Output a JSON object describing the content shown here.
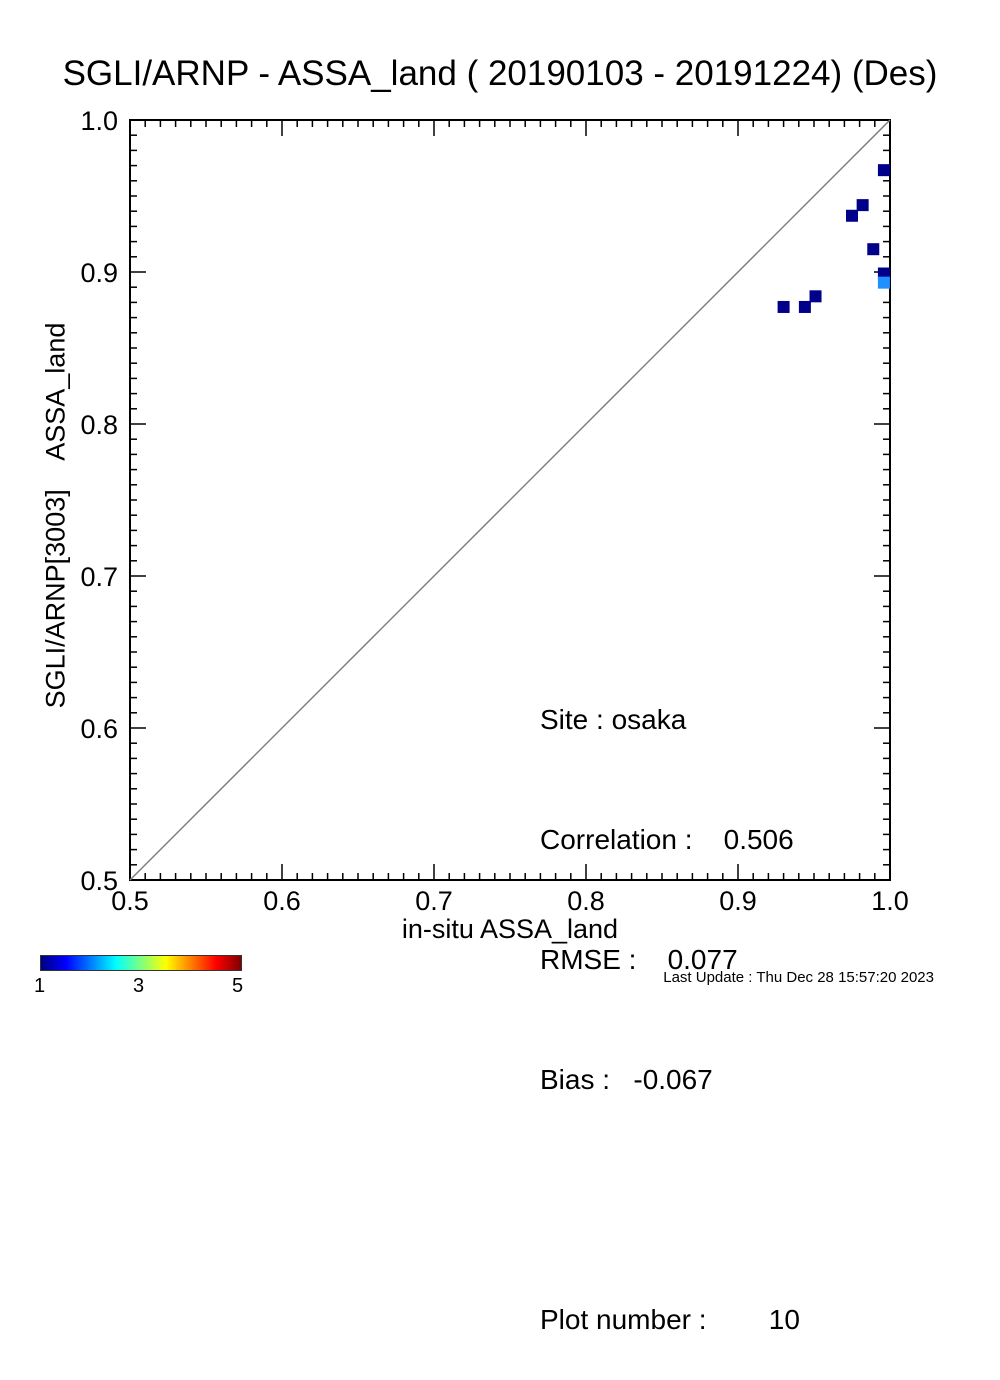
{
  "title": "SGLI/ARNP - ASSA_land ( 20190103 - 20191224) (Des)",
  "chart_data": {
    "type": "scatter",
    "title": "SGLI/ARNP - ASSA_land ( 20190103 - 20191224) (Des)",
    "xlabel": "in-situ ASSA_land",
    "ylabel": "SGLI/ARNP[3003]    ASSA_land",
    "xlim": [
      0.5,
      1.0
    ],
    "ylim": [
      0.5,
      1.0
    ],
    "xticks": [
      "0.5",
      "0.6",
      "0.7",
      "0.8",
      "0.9",
      "1.0"
    ],
    "yticks": [
      "0.5",
      "0.6",
      "0.7",
      "0.8",
      "0.9",
      "1.0"
    ],
    "one_to_one_line": true,
    "points": [
      {
        "x": 0.93,
        "y": 0.877,
        "count": 1
      },
      {
        "x": 0.944,
        "y": 0.877,
        "count": 1
      },
      {
        "x": 0.951,
        "y": 0.884,
        "count": 1
      },
      {
        "x": 0.975,
        "y": 0.937,
        "count": 1
      },
      {
        "x": 0.982,
        "y": 0.944,
        "count": 1
      },
      {
        "x": 0.989,
        "y": 0.915,
        "count": 1
      },
      {
        "x": 0.996,
        "y": 0.967,
        "count": 1
      },
      {
        "x": 0.996,
        "y": 0.899,
        "count": 1
      },
      {
        "x": 0.996,
        "y": 0.893,
        "count": 2
      }
    ],
    "colorbar": {
      "min": 1,
      "max": 5,
      "tick_labels": [
        "1",
        "3",
        "5"
      ]
    }
  },
  "stats": {
    "site": "Site : osaka",
    "correlation": "Correlation :    0.506",
    "rmse": "RMSE :    0.077",
    "bias": "Bias :   -0.067",
    "plot_number": "Plot number :        10"
  },
  "last_update": "Last Update : Thu Dec 28 15:57:20 2023",
  "colors": {
    "point_count_1": "#00008b",
    "point_count_2": "#1e90ff",
    "diagonal": "#808080"
  }
}
